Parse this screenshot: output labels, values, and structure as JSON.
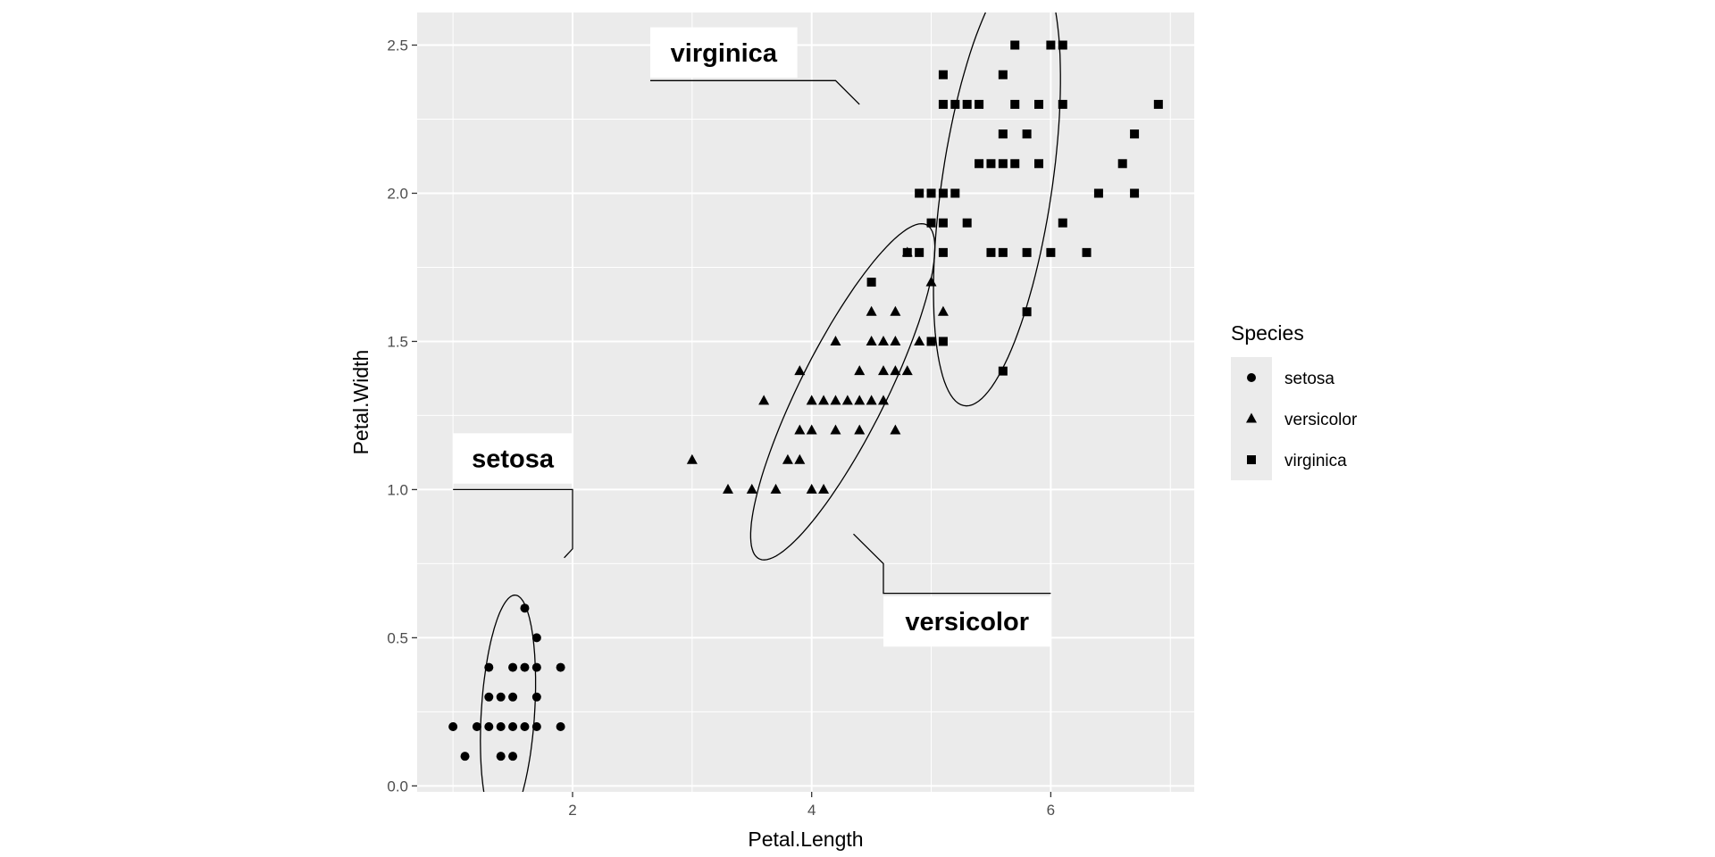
{
  "chart_data": {
    "type": "scatter",
    "xlabel": "Petal.Length",
    "ylabel": "Petal.Width",
    "xlim": [
      0.7,
      7.2
    ],
    "ylim": [
      -0.02,
      2.61
    ],
    "xticks": [
      2,
      4,
      6
    ],
    "xtick_labels": [
      "2",
      "4",
      "6"
    ],
    "yticks": [
      0.0,
      0.5,
      1.0,
      1.5,
      2.0,
      2.5
    ],
    "ytick_labels": [
      "0.0",
      "0.5",
      "1.0",
      "1.5",
      "2.0",
      "2.5"
    ],
    "grid": true,
    "panel_background": "#ebebeb",
    "grid_color": "#ffffff",
    "point_color": "#000000",
    "legend": {
      "title": "Species",
      "position": "right",
      "entries": [
        {
          "label": "setosa",
          "shape": "circle"
        },
        {
          "label": "versicolor",
          "shape": "triangle"
        },
        {
          "label": "virginica",
          "shape": "square"
        }
      ]
    },
    "series": [
      {
        "name": "setosa",
        "shape": "circle",
        "points": [
          [
            1.0,
            0.2
          ],
          [
            1.1,
            0.1
          ],
          [
            1.2,
            0.2
          ],
          [
            1.3,
            0.2
          ],
          [
            1.3,
            0.3
          ],
          [
            1.3,
            0.4
          ],
          [
            1.4,
            0.2
          ],
          [
            1.4,
            0.3
          ],
          [
            1.4,
            0.1
          ],
          [
            1.5,
            0.2
          ],
          [
            1.5,
            0.4
          ],
          [
            1.5,
            0.1
          ],
          [
            1.5,
            0.3
          ],
          [
            1.6,
            0.2
          ],
          [
            1.6,
            0.4
          ],
          [
            1.6,
            0.6
          ],
          [
            1.7,
            0.2
          ],
          [
            1.7,
            0.4
          ],
          [
            1.7,
            0.3
          ],
          [
            1.7,
            0.5
          ],
          [
            1.9,
            0.2
          ],
          [
            1.9,
            0.4
          ]
        ]
      },
      {
        "name": "versicolor",
        "shape": "triangle",
        "points": [
          [
            3.0,
            1.1
          ],
          [
            3.3,
            1.0
          ],
          [
            3.5,
            1.0
          ],
          [
            3.6,
            1.3
          ],
          [
            3.7,
            1.0
          ],
          [
            3.8,
            1.1
          ],
          [
            3.9,
            1.1
          ],
          [
            3.9,
            1.2
          ],
          [
            3.9,
            1.4
          ],
          [
            4.0,
            1.3
          ],
          [
            4.0,
            1.0
          ],
          [
            4.0,
            1.2
          ],
          [
            4.1,
            1.3
          ],
          [
            4.1,
            1.0
          ],
          [
            4.2,
            1.3
          ],
          [
            4.2,
            1.2
          ],
          [
            4.2,
            1.5
          ],
          [
            4.3,
            1.3
          ],
          [
            4.4,
            1.4
          ],
          [
            4.4,
            1.3
          ],
          [
            4.4,
            1.2
          ],
          [
            4.5,
            1.5
          ],
          [
            4.5,
            1.3
          ],
          [
            4.5,
            1.6
          ],
          [
            4.6,
            1.5
          ],
          [
            4.6,
            1.4
          ],
          [
            4.6,
            1.3
          ],
          [
            4.7,
            1.4
          ],
          [
            4.7,
            1.6
          ],
          [
            4.7,
            1.5
          ],
          [
            4.7,
            1.2
          ],
          [
            4.8,
            1.4
          ],
          [
            4.8,
            1.8
          ],
          [
            4.9,
            1.5
          ],
          [
            5.0,
            1.7
          ],
          [
            5.1,
            1.6
          ]
        ]
      },
      {
        "name": "virginica",
        "shape": "square",
        "points": [
          [
            4.5,
            1.7
          ],
          [
            4.8,
            1.8
          ],
          [
            4.9,
            1.8
          ],
          [
            4.9,
            2.0
          ],
          [
            5.0,
            2.0
          ],
          [
            5.0,
            1.9
          ],
          [
            5.0,
            1.5
          ],
          [
            5.1,
            2.0
          ],
          [
            5.1,
            1.9
          ],
          [
            5.1,
            2.4
          ],
          [
            5.1,
            2.3
          ],
          [
            5.1,
            1.8
          ],
          [
            5.1,
            1.5
          ],
          [
            5.2,
            2.3
          ],
          [
            5.2,
            2.0
          ],
          [
            5.3,
            2.3
          ],
          [
            5.3,
            1.9
          ],
          [
            5.4,
            2.3
          ],
          [
            5.4,
            2.1
          ],
          [
            5.5,
            2.1
          ],
          [
            5.5,
            1.8
          ],
          [
            5.6,
            2.4
          ],
          [
            5.6,
            2.2
          ],
          [
            5.6,
            2.1
          ],
          [
            5.6,
            1.8
          ],
          [
            5.6,
            1.4
          ],
          [
            5.7,
            2.5
          ],
          [
            5.7,
            2.3
          ],
          [
            5.7,
            2.1
          ],
          [
            5.8,
            2.2
          ],
          [
            5.8,
            1.8
          ],
          [
            5.8,
            1.6
          ],
          [
            5.9,
            2.3
          ],
          [
            5.9,
            2.1
          ],
          [
            6.0,
            2.5
          ],
          [
            6.0,
            1.8
          ],
          [
            6.1,
            2.5
          ],
          [
            6.1,
            2.3
          ],
          [
            6.1,
            1.9
          ],
          [
            6.3,
            1.8
          ],
          [
            6.4,
            2.0
          ],
          [
            6.6,
            2.1
          ],
          [
            6.7,
            2.2
          ],
          [
            6.7,
            2.0
          ],
          [
            6.9,
            2.3
          ]
        ]
      }
    ],
    "ellipses": [
      {
        "series": "setosa",
        "cx": 1.46,
        "cy": 0.25,
        "rx": 0.8,
        "ry": 0.44,
        "angle_deg": 78
      },
      {
        "series": "versicolor",
        "cx": 4.26,
        "cy": 1.33,
        "rx": 1.85,
        "ry": 0.49,
        "angle_deg": 35
      },
      {
        "series": "virginica",
        "cx": 5.55,
        "cy": 2.03,
        "rx": 1.62,
        "ry": 0.86,
        "angle_deg": 63
      }
    ],
    "annotations": [
      {
        "text": "virginica",
        "box_x": [
          2.65,
          3.88
        ],
        "box_y": [
          2.39,
          2.56
        ],
        "leader": [
          [
            2.65,
            2.38
          ],
          [
            4.2,
            2.38
          ],
          [
            4.4,
            2.3
          ]
        ]
      },
      {
        "text": "setosa",
        "box_x": [
          1.0,
          2.0
        ],
        "box_y": [
          1.02,
          1.19
        ],
        "leader": [
          [
            1.0,
            1.0
          ],
          [
            2.0,
            1.0
          ],
          [
            2.0,
            0.8
          ],
          [
            1.93,
            0.77
          ]
        ]
      },
      {
        "text": "versicolor",
        "box_x": [
          4.6,
          6.0
        ],
        "box_y": [
          0.47,
          0.64
        ],
        "leader": [
          [
            6.0,
            0.65
          ],
          [
            4.6,
            0.65
          ],
          [
            4.6,
            0.75
          ],
          [
            4.35,
            0.85
          ]
        ]
      }
    ]
  }
}
